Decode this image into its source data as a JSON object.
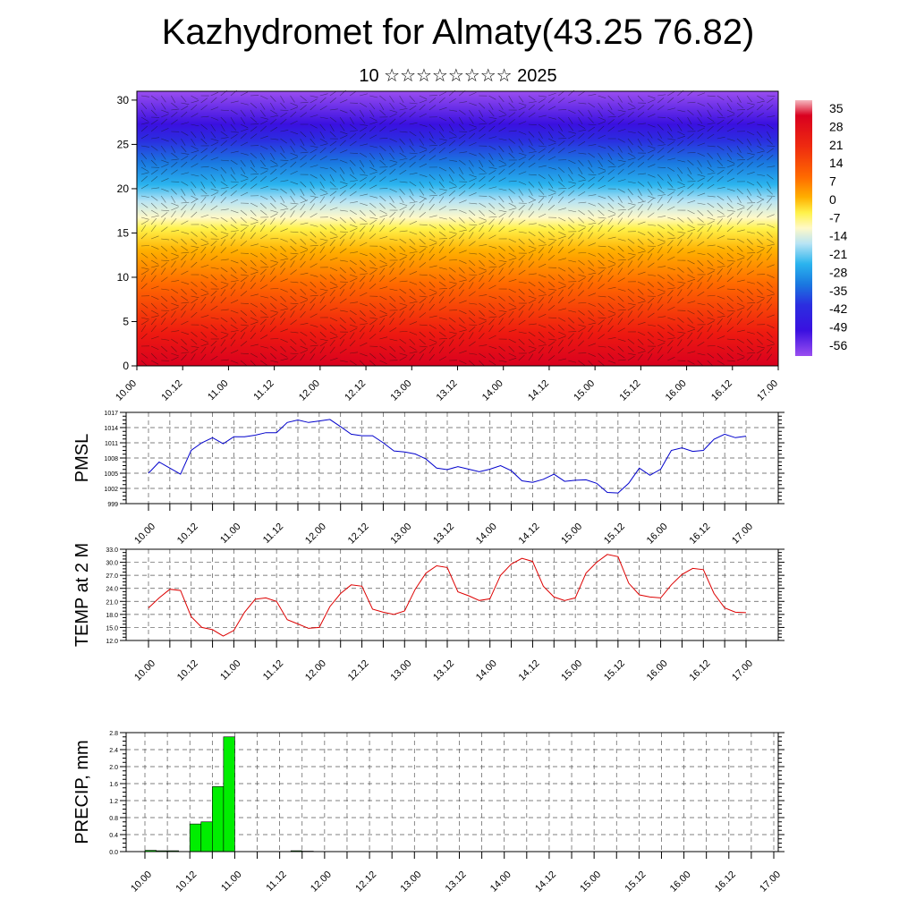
{
  "title": "Kazhydromet for Almaty(43.25 76.82)",
  "subtitle": "10 ☆☆☆☆☆☆☆☆ 2025",
  "chart_data": [
    {
      "type": "heatmap",
      "name": "vertical cross-section",
      "y_ticks": [
        "0",
        "5",
        "10",
        "15",
        "20",
        "25",
        "30"
      ],
      "ylim": [
        0,
        31
      ],
      "x_ticks": [
        "10.00",
        "10.12",
        "11.00",
        "11.12",
        "12.00",
        "12.12",
        "13.00",
        "13.12",
        "14.00",
        "14.12",
        "15.00",
        "15.12",
        "16.00",
        "16.12",
        "17.00"
      ],
      "colorbar_labels": [
        "35",
        "28",
        "21",
        "14",
        "7",
        "0",
        "-7",
        "-14",
        "-21",
        "-28",
        "-35",
        "-42",
        "-49",
        "-56"
      ],
      "colorbar_stops": [
        "#f5b8c0",
        "#d9001f",
        "#ee2a10",
        "#ff6a00",
        "#ffb000",
        "#fff24a",
        "#fff9c8",
        "#b8e4f4",
        "#2ab4ee",
        "#1a78e0",
        "#2b2ee0",
        "#3a10e0",
        "#6a1ee8",
        "#9a4ef0"
      ]
    },
    {
      "type": "line",
      "ylabel": "PMSL",
      "y_ticks": [
        "999",
        "1002",
        "1005",
        "1008",
        "1011",
        "1014",
        "1017"
      ],
      "ylim": [
        999,
        1017
      ],
      "x_ticks": [
        "10.00",
        "10.12",
        "11.00",
        "11.12",
        "12.00",
        "12.12",
        "13.00",
        "13.12",
        "14.00",
        "14.12",
        "15.00",
        "15.12",
        "16.00",
        "16.12",
        "17.00"
      ],
      "color": "#0000cc",
      "values": [
        1005.0,
        1007.2,
        1006.0,
        1004.8,
        1009.5,
        1011.0,
        1012.0,
        1010.8,
        1012.2,
        1012.2,
        1012.5,
        1013.0,
        1013.0,
        1015.0,
        1015.5,
        1015.0,
        1015.3,
        1015.6,
        1014.2,
        1012.7,
        1012.4,
        1012.4,
        1011.0,
        1009.4,
        1009.2,
        1008.8,
        1007.8,
        1006.0,
        1005.7,
        1006.3,
        1005.8,
        1005.3,
        1005.8,
        1006.5,
        1005.5,
        1003.5,
        1003.2,
        1003.8,
        1004.8,
        1003.4,
        1003.6,
        1003.7,
        1003.0,
        1001.2,
        1001.1,
        1003.0,
        1006.0,
        1004.6,
        1005.8,
        1009.5,
        1010.0,
        1009.3,
        1009.5,
        1011.7,
        1012.7,
        1012.0,
        1012.3
      ]
    },
    {
      "type": "line",
      "ylabel": "TEMP at 2 M",
      "y_ticks": [
        "12.0",
        "15.0",
        "18.0",
        "21.0",
        "24.0",
        "27.0",
        "30.0",
        "33.0"
      ],
      "ylim": [
        12,
        33
      ],
      "x_ticks": [
        "10.00",
        "10.12",
        "11.00",
        "11.12",
        "12.00",
        "12.12",
        "13.00",
        "13.12",
        "14.00",
        "14.12",
        "15.00",
        "15.12",
        "16.00",
        "16.12",
        "17.00"
      ],
      "color": "#dd0000",
      "values": [
        19.5,
        21.8,
        23.8,
        23.5,
        17.5,
        15.0,
        14.5,
        13.0,
        14.3,
        18.5,
        21.5,
        21.8,
        21.0,
        16.8,
        15.8,
        14.8,
        15.0,
        19.8,
        22.8,
        24.8,
        24.5,
        19.2,
        18.5,
        18.0,
        18.8,
        23.8,
        27.5,
        29.2,
        28.8,
        23.2,
        22.3,
        21.2,
        21.6,
        27.0,
        29.6,
        30.9,
        30.2,
        24.5,
        22.0,
        21.2,
        21.8,
        27.5,
        30.0,
        31.8,
        31.3,
        25.2,
        22.5,
        22.0,
        21.8,
        24.8,
        27.2,
        28.6,
        28.3,
        22.8,
        19.5,
        18.5,
        18.4
      ]
    },
    {
      "type": "bar",
      "ylabel": "PRECIP, mm",
      "y_ticks": [
        "0.0",
        "0.4",
        "0.8",
        "1.2",
        "1.6",
        "2.0",
        "2.4",
        "2.8"
      ],
      "ylim": [
        0,
        2.8
      ],
      "x_ticks": [
        "10.00",
        "10.12",
        "11.00",
        "11.12",
        "12.00",
        "12.12",
        "13.00",
        "13.12",
        "14.00",
        "14.12",
        "15.00",
        "15.12",
        "16.00",
        "16.12",
        "17.00"
      ],
      "color": "#00ee00",
      "values": [
        0.03,
        0.02,
        0.02,
        0.0,
        0.65,
        0.7,
        1.53,
        2.7,
        0.0,
        0.0,
        0.0,
        0.0,
        0.0,
        0.02,
        0.01,
        0.0,
        0.0,
        0.0,
        0.0,
        0.0,
        0.0,
        0.0,
        0.0,
        0.0,
        0.0,
        0.0,
        0.0,
        0.0,
        0.0,
        0.0,
        0.0,
        0.0,
        0.0,
        0.0,
        0.0,
        0.0,
        0.0,
        0.0,
        0.0,
        0.0,
        0.0,
        0.0,
        0.0,
        0.0,
        0.0,
        0.0,
        0.0,
        0.0,
        0.0,
        0.0,
        0.0,
        0.0,
        0.0,
        0.0,
        0.0,
        0.0,
        0.0
      ]
    }
  ]
}
